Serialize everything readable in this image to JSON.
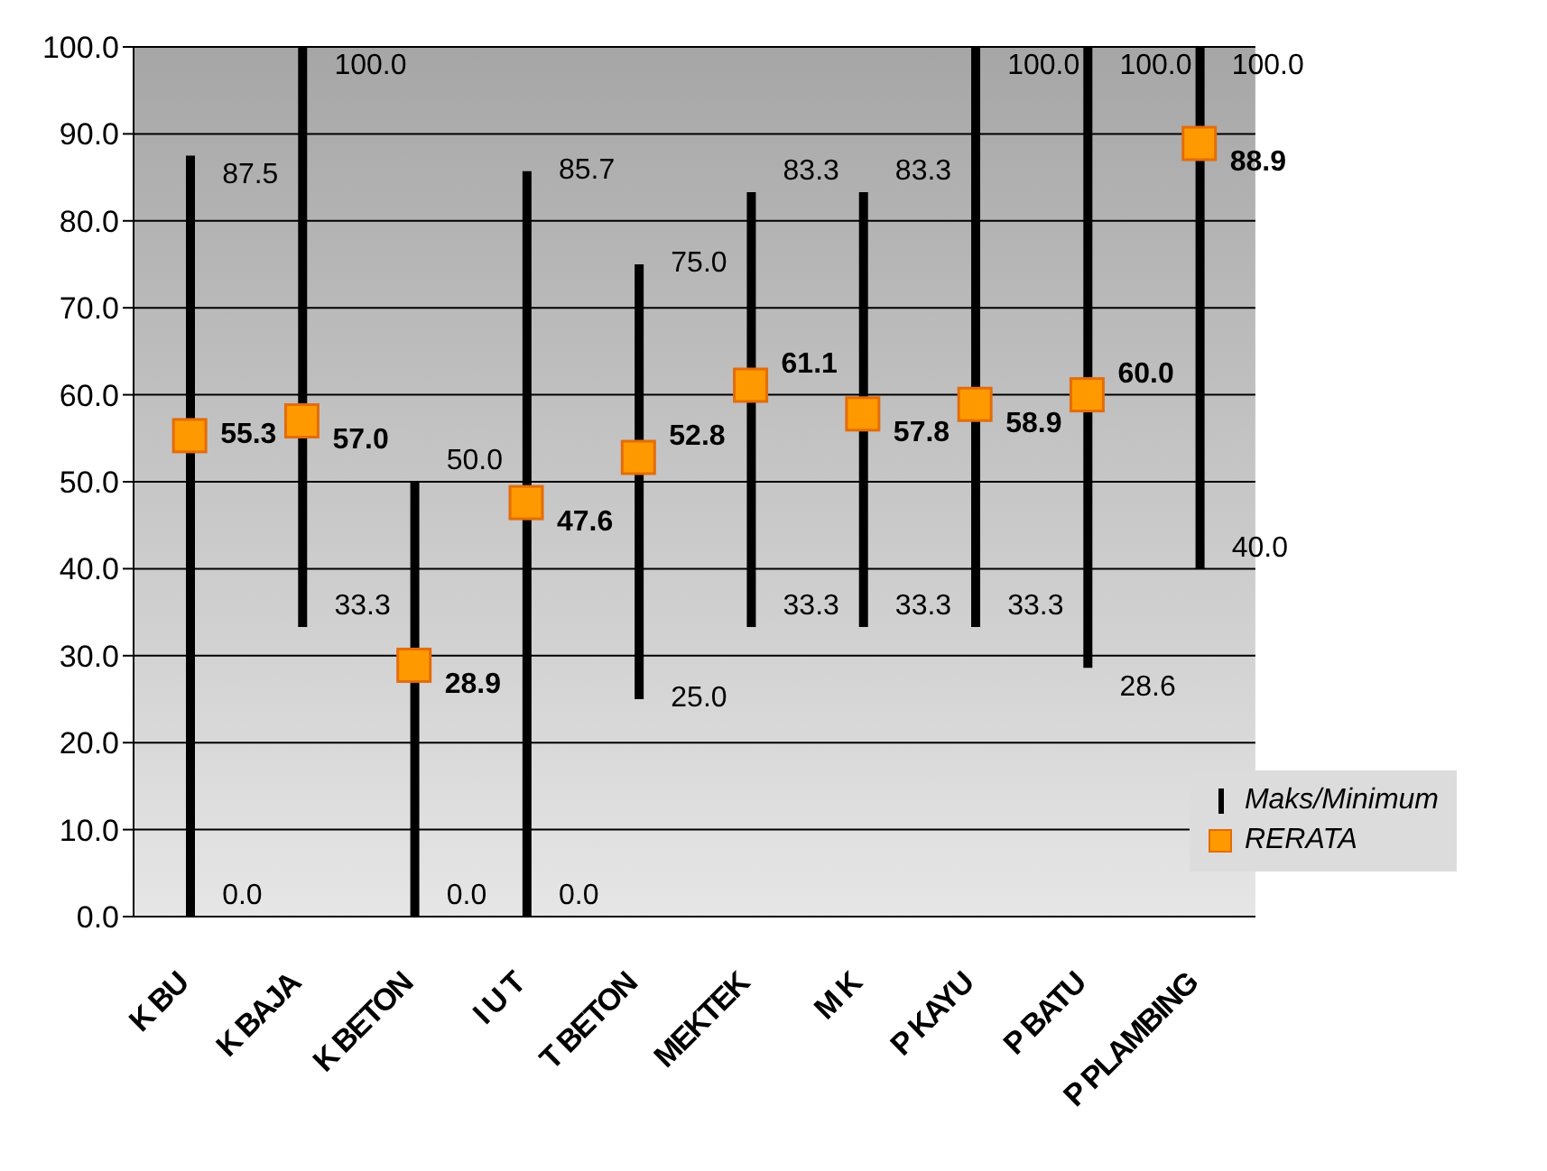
{
  "chart_data": {
    "type": "bar",
    "categories": [
      "K BU",
      "K BAJA",
      "K BETON",
      "I U T",
      "T BETON",
      "MEKTEK",
      "M K",
      "P KAYU",
      "P BATU",
      "P PLAMBING"
    ],
    "series": [
      {
        "name": "Maks/Minimum",
        "color": "#000000",
        "base": [
          0.0,
          33.3,
          0.0,
          0.0,
          25.0,
          33.3,
          33.3,
          33.3,
          28.6,
          40.0
        ],
        "values": [
          87.5,
          66.7,
          50.0,
          85.7,
          50.0,
          50.0,
          50.0,
          66.7,
          71.4,
          60.0
        ]
      },
      {
        "name": "RERATA",
        "type": "scatter",
        "color": "#ff9900",
        "marker": "square",
        "value_labels": [
          "55.3",
          "57.0",
          "28.9",
          "47.6",
          "52.8",
          "61.1",
          "57.8",
          "58.9",
          "60.0",
          "88.9"
        ],
        "values": [
          55.3,
          57.0,
          28.9,
          47.6,
          52.8,
          61.1,
          57.8,
          58.9,
          60.0,
          88.9
        ]
      }
    ],
    "ylim": [
      0,
      100
    ],
    "yticks": [
      {
        "value": 0,
        "label": "0.0"
      },
      {
        "value": 10,
        "label": "10.0"
      },
      {
        "value": 20,
        "label": "20.0"
      },
      {
        "value": 30,
        "label": "30.0"
      },
      {
        "value": 40,
        "label": "40.0"
      },
      {
        "value": 50,
        "label": "50.0"
      },
      {
        "value": 60,
        "label": "60.0"
      },
      {
        "value": 70,
        "label": "70.0"
      },
      {
        "value": 80,
        "label": "80.0"
      },
      {
        "value": 90,
        "label": "90.0"
      },
      {
        "value": 100,
        "label": "100.0"
      }
    ],
    "grid": "y",
    "legend": "bottom right",
    "annotations": [
      {
        "text": "87.5",
        "x": "K BU",
        "y": 87.5
      },
      {
        "text": "0.0",
        "x": "K BU",
        "y": 0.0
      },
      {
        "text": "100.0",
        "x": "K BAJA",
        "y": 100.0
      },
      {
        "text": "33.3",
        "x": "K BAJA",
        "y": 33.3
      },
      {
        "text": "50.0",
        "x": "K BETON",
        "y": 50.0
      },
      {
        "text": "0.0",
        "x": "K BETON",
        "y": 0.0
      },
      {
        "text": "85.7",
        "x": "I U T",
        "y": 85.7
      },
      {
        "text": "0.0",
        "x": "I U T",
        "y": 0.0
      },
      {
        "text": "75.0",
        "x": "T BETON",
        "y": 75.0
      },
      {
        "text": "25.0",
        "x": "T BETON",
        "y": 25.0
      },
      {
        "text": "83.3",
        "x": "MEKTEK",
        "y": 83.3
      },
      {
        "text": "33.3",
        "x": "MEKTEK",
        "y": 33.3
      },
      {
        "text": "83.3",
        "x": "M K",
        "y": 83.3
      },
      {
        "text": "33.3",
        "x": "M K",
        "y": 33.3
      },
      {
        "text": "100.0",
        "x": "P KAYU",
        "y": 100.0
      },
      {
        "text": "33.3",
        "x": "P KAYU",
        "y": 33.3
      },
      {
        "text": "100.0",
        "x": "P BATU",
        "y": 100.0
      },
      {
        "text": "28.6",
        "x": "P BATU",
        "y": 28.6
      },
      {
        "text": "100.0",
        "x": "P PLAMBING",
        "y": 100.0
      },
      {
        "text": "40.0",
        "x": "P PLAMBING",
        "y": 40.0
      }
    ]
  }
}
